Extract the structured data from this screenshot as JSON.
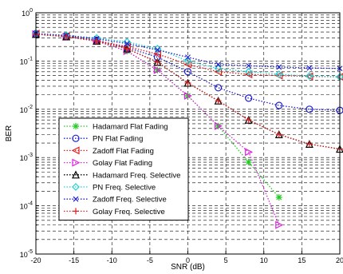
{
  "chart_data": {
    "type": "line",
    "xlabel": "SNR (dB)",
    "ylabel": "BER",
    "xlim": [
      -20,
      20
    ],
    "ylim_log10": [
      -5,
      0
    ],
    "y_scale": "log",
    "grid": true,
    "legend_placement": "bottom-left",
    "x_ticks": [
      "-20",
      "-15",
      "-10",
      "-5",
      "0",
      "5",
      "10",
      "15",
      "20"
    ],
    "y_ticks": [
      {
        "base": "10",
        "exp": "0"
      },
      {
        "base": "10",
        "exp": "-1"
      },
      {
        "base": "10",
        "exp": "-2"
      },
      {
        "base": "10",
        "exp": "-3"
      },
      {
        "base": "10",
        "exp": "-4"
      },
      {
        "base": "10",
        "exp": "-5"
      }
    ],
    "series": [
      {
        "name": "Hadamard Flat Fading",
        "color": "#22cc22",
        "marker": "star",
        "x": [
          -20,
          -16,
          -12,
          -8,
          -4,
          0,
          4,
          8,
          12
        ],
        "y": [
          0.36,
          0.32,
          0.26,
          0.16,
          0.065,
          0.019,
          0.0045,
          0.0008,
          0.00015
        ]
      },
      {
        "name": "PN Flat Fading",
        "color": "#1f1fd0",
        "marker": "circle",
        "x": [
          -20,
          -16,
          -12,
          -8,
          -4,
          0,
          4,
          8,
          12,
          16,
          20
        ],
        "y": [
          0.37,
          0.33,
          0.27,
          0.19,
          0.12,
          0.06,
          0.028,
          0.017,
          0.012,
          0.01,
          0.0095
        ]
      },
      {
        "name": "Zadoff Flat Fading",
        "color": "#e02020",
        "marker": "triangle-left",
        "x": [
          -20,
          -16,
          -12,
          -8,
          -4,
          0,
          4,
          8,
          12,
          16,
          20
        ],
        "y": [
          0.37,
          0.33,
          0.26,
          0.2,
          0.14,
          0.085,
          0.06,
          0.053,
          0.05,
          0.048,
          0.047
        ]
      },
      {
        "name": "Golay Flat Fading",
        "color": "#e020e0",
        "marker": "triangle-right",
        "x": [
          -20,
          -16,
          -12,
          -8,
          -4,
          0,
          4,
          8,
          12
        ],
        "y": [
          0.36,
          0.32,
          0.26,
          0.16,
          0.065,
          0.019,
          0.0045,
          0.0013,
          4e-05
        ]
      },
      {
        "name": "Hadamard Freq. Selective",
        "color": "#000000",
        "marker": "triangle-up",
        "x": [
          -20,
          -16,
          -12,
          -8,
          -4,
          0,
          4,
          8,
          12,
          16,
          20
        ],
        "y": [
          0.36,
          0.32,
          0.26,
          0.18,
          0.095,
          0.035,
          0.015,
          0.006,
          0.003,
          0.0019,
          0.0015
        ]
      },
      {
        "name": "PN Freq. Selective",
        "color": "#20d0d0",
        "marker": "diamond",
        "x": [
          -20,
          -16,
          -12,
          -8,
          -4,
          0,
          4,
          8,
          12,
          16,
          20
        ],
        "y": [
          0.37,
          0.34,
          0.3,
          0.25,
          0.18,
          0.1,
          0.07,
          0.06,
          0.053,
          0.049,
          0.047
        ]
      },
      {
        "name": "Zadoff Freq. Selective",
        "color": "#1f1fd0",
        "marker": "x",
        "x": [
          -20,
          -16,
          -12,
          -8,
          -4,
          0,
          4,
          8,
          12,
          16,
          20
        ],
        "y": [
          0.37,
          0.34,
          0.29,
          0.23,
          0.17,
          0.12,
          0.085,
          0.08,
          0.075,
          0.072,
          0.07
        ]
      },
      {
        "name": "Golay Freq. Selective",
        "color": "#e02020",
        "marker": "plus",
        "x": [
          -20,
          -16,
          -12,
          -8,
          -4,
          0,
          4,
          8,
          12,
          16,
          20
        ],
        "y": [
          0.36,
          0.32,
          0.26,
          0.18,
          0.095,
          0.035,
          0.015,
          0.006,
          0.003,
          0.0019,
          0.0015
        ]
      }
    ]
  }
}
